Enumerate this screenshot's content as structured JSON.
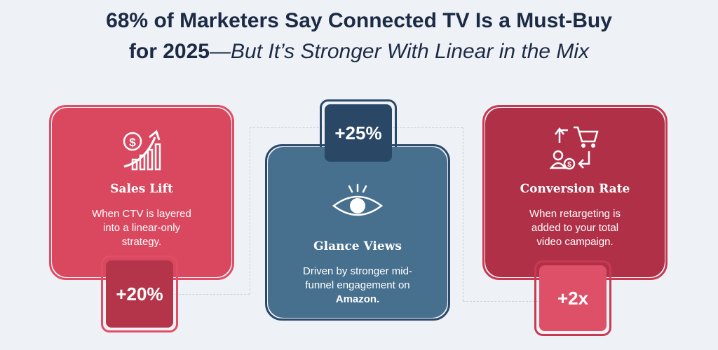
{
  "headline": {
    "line1": "68% of Marketers Say Connected TV Is a Must-Buy",
    "line2_bold": "for 2025",
    "line2_italic": "—But It’s Stronger With Linear in the Mix"
  },
  "cards": {
    "sales_lift": {
      "title": "Sales Lift",
      "desc1": "When CTV is layered",
      "desc2": "into a linear-only",
      "desc3": "strategy.",
      "stat": "+20%",
      "icon": "sales-growth-icon"
    },
    "glance_views": {
      "title": "Glance Views",
      "desc1": "Driven by stronger mid-",
      "desc2": "funnel engagement on",
      "desc3": "Amazon.",
      "stat": "+25%",
      "icon": "eye-icon"
    },
    "conversion_rate": {
      "title": "Conversion Rate",
      "desc1": "When retargeting is",
      "desc2": "added to your total",
      "desc3": "video campaign.",
      "stat": "+2x",
      "icon": "retargeting-cart-icon"
    }
  },
  "colors": {
    "background": "#eef2f6",
    "title": "#1c2a45",
    "pink": "#d9485f",
    "pink_outline": "#e04d64",
    "pink_badge": "#b4354a",
    "blue": "#47708f",
    "blue_outline": "#2b4a6a",
    "blue_badge": "#2a4766",
    "red": "#b03048",
    "red_outline": "#c73a52",
    "red_badge": "#de5068"
  }
}
